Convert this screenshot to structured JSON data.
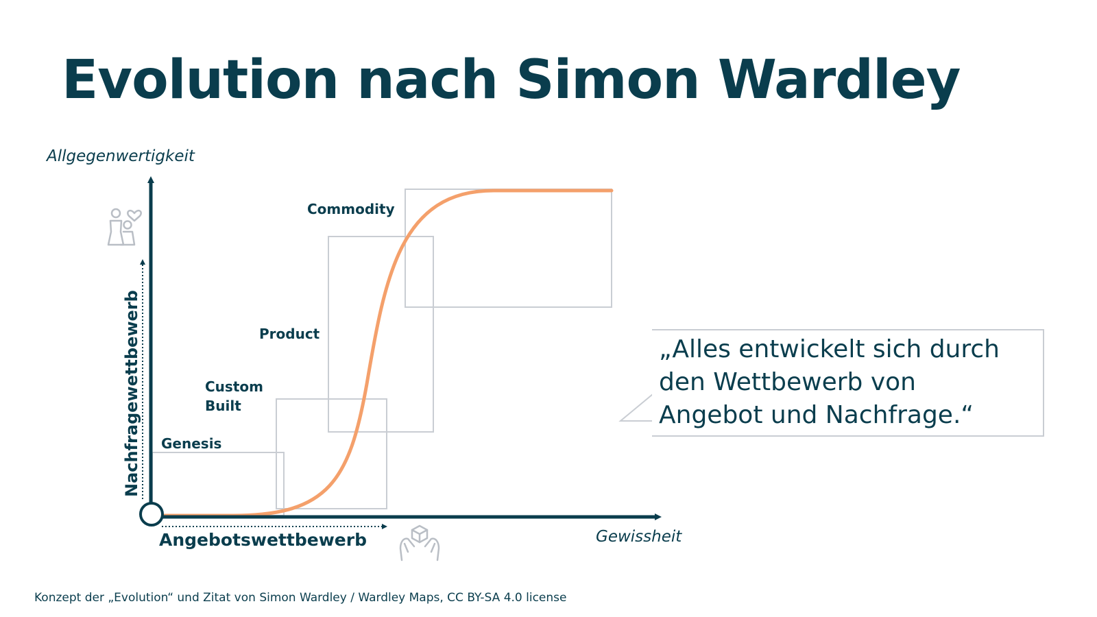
{
  "title": "Evolution nach Simon Wardley",
  "axes": {
    "y_label": "Allgegenwertigkeit",
    "x_label": "Gewissheit",
    "y_sub_label": "Nachfragewettbewerb",
    "x_sub_label": "Angebotswettbewerb"
  },
  "stages": [
    {
      "id": "genesis",
      "label": "Genesis"
    },
    {
      "id": "custom-built",
      "label": "Custom\nBuilt"
    },
    {
      "id": "product",
      "label": "Product"
    },
    {
      "id": "commodity",
      "label": "Commodity"
    }
  ],
  "icons": {
    "demand": "people-heart-icon",
    "supply": "hands-box-icon"
  },
  "quote": {
    "lines": [
      "„Alles entwickelt sich durch",
      "den Wettbewerb von",
      "Angebot und Nachfrage.“"
    ]
  },
  "footer": "Konzept der „Evolution“ und Zitat von Simon Wardley / Wardley Maps, CC BY-SA 4.0 license",
  "colors": {
    "primary": "#0a3d4d",
    "curve": "#f4a06b",
    "box_border": "#c9cdd3",
    "icon": "#b9bec5"
  }
}
